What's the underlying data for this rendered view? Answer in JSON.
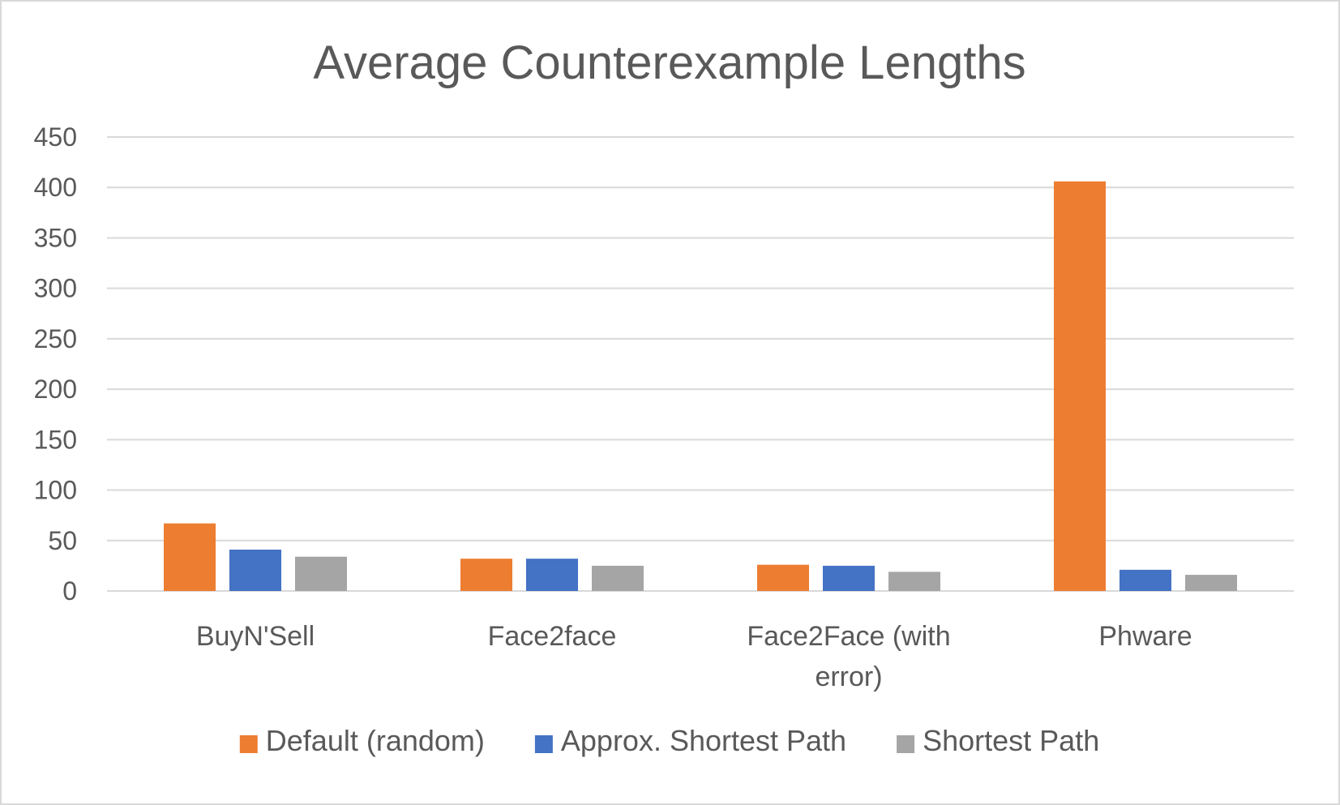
{
  "chart_data": {
    "type": "bar",
    "title": "Average Counterexample Lengths",
    "categories": [
      [
        "BuyN'Sell"
      ],
      [
        "Face2face"
      ],
      [
        "Face2Face (with",
        "error)"
      ],
      [
        "Phware"
      ]
    ],
    "series": [
      {
        "name": "Default (random)",
        "color": "#ed7d31",
        "values": [
          67,
          32,
          26,
          406
        ]
      },
      {
        "name": "Approx. Shortest Path",
        "color": "#4472c4",
        "values": [
          41,
          32,
          25,
          21
        ]
      },
      {
        "name": "Shortest Path",
        "color": "#a5a5a5",
        "values": [
          34,
          25,
          19,
          16
        ]
      }
    ],
    "ylim": [
      0,
      450
    ],
    "yticks": [
      0,
      50,
      100,
      150,
      200,
      250,
      300,
      350,
      400,
      450
    ],
    "grid": true,
    "legend": "bottom"
  }
}
